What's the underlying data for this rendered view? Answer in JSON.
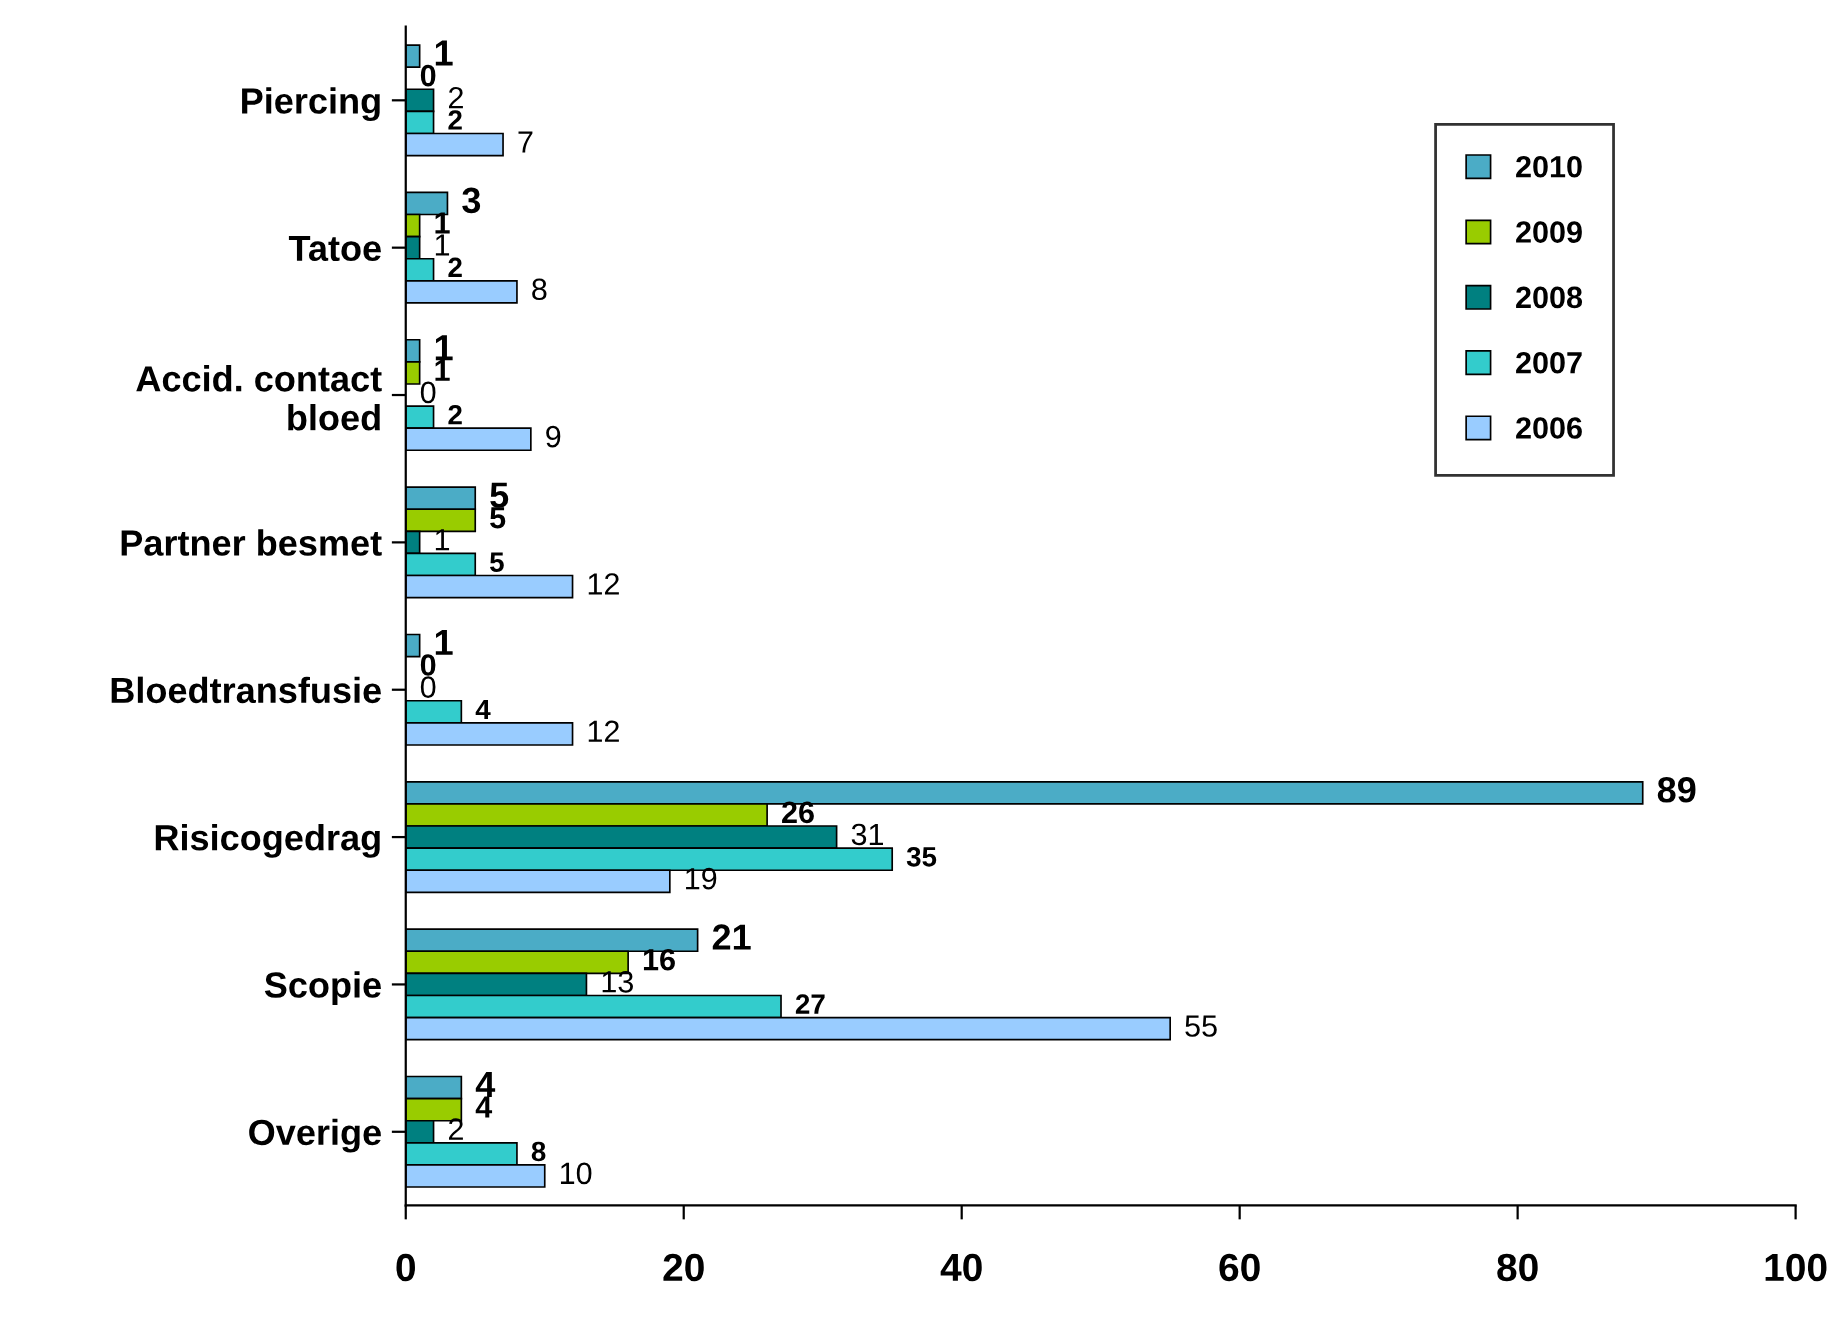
{
  "chart_data": {
    "type": "bar",
    "orientation": "horizontal",
    "categories": [
      "Piercing",
      "Tatoe",
      "Accid. contact\nbloed",
      "Partner besmet",
      "Bloedtransfusie",
      "Risicogedrag",
      "Scopie",
      "Overige"
    ],
    "series": [
      {
        "name": "2010",
        "color": "#4bacc6",
        "values": [
          1,
          3,
          1,
          5,
          1,
          89,
          21,
          4
        ]
      },
      {
        "name": "2009",
        "color": "#99cc00",
        "values": [
          0,
          1,
          1,
          5,
          0,
          26,
          16,
          4
        ]
      },
      {
        "name": "2008",
        "color": "#008080",
        "values": [
          2,
          1,
          0,
          1,
          0,
          31,
          13,
          2
        ]
      },
      {
        "name": "2007",
        "color": "#33cccc",
        "values": [
          2,
          2,
          2,
          5,
          4,
          35,
          27,
          8
        ]
      },
      {
        "name": "2006",
        "color": "#99ccff",
        "values": [
          7,
          8,
          9,
          12,
          12,
          19,
          55,
          10
        ]
      }
    ],
    "xlim": [
      0,
      100
    ],
    "xticks": [
      0,
      20,
      40,
      60,
      80,
      100
    ],
    "data_labels": true,
    "legend": "top right",
    "grid": false
  }
}
